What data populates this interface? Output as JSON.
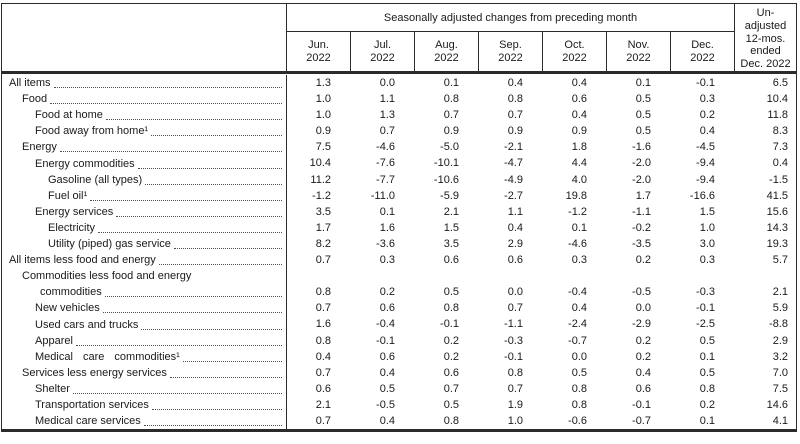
{
  "chart_data": {
    "type": "table",
    "spanner": "Seasonally adjusted changes from preceding month",
    "month_columns": [
      {
        "abbr": "Jun.",
        "year": "2022"
      },
      {
        "abbr": "Jul.",
        "year": "2022"
      },
      {
        "abbr": "Aug.",
        "year": "2022"
      },
      {
        "abbr": "Sep.",
        "year": "2022"
      },
      {
        "abbr": "Oct.",
        "year": "2022"
      },
      {
        "abbr": "Nov.",
        "year": "2022"
      },
      {
        "abbr": "Dec.",
        "year": "2022"
      }
    ],
    "unadjusted_header_lines": [
      "Un-",
      "adjusted",
      "12-mos.",
      "ended",
      "Dec. 2022"
    ],
    "rows": [
      {
        "label": "All items",
        "indent": 0,
        "values": [
          "1.3",
          "0.0",
          "0.1",
          "0.4",
          "0.4",
          "0.1",
          "-0.1"
        ],
        "unadjusted": "6.5"
      },
      {
        "label": "Food",
        "indent": 1,
        "values": [
          "1.0",
          "1.1",
          "0.8",
          "0.8",
          "0.6",
          "0.5",
          "0.3"
        ],
        "unadjusted": "10.4"
      },
      {
        "label": "Food at home",
        "indent": 2,
        "values": [
          "1.0",
          "1.3",
          "0.7",
          "0.7",
          "0.4",
          "0.5",
          "0.2"
        ],
        "unadjusted": "11.8"
      },
      {
        "label": "Food away from home¹",
        "indent": 2,
        "values": [
          "0.9",
          "0.7",
          "0.9",
          "0.9",
          "0.9",
          "0.5",
          "0.4"
        ],
        "unadjusted": "8.3"
      },
      {
        "label": "Energy",
        "indent": 1,
        "values": [
          "7.5",
          "-4.6",
          "-5.0",
          "-2.1",
          "1.8",
          "-1.6",
          "-4.5"
        ],
        "unadjusted": "7.3"
      },
      {
        "label": "Energy commodities",
        "indent": 2,
        "values": [
          "10.4",
          "-7.6",
          "-10.1",
          "-4.7",
          "4.4",
          "-2.0",
          "-9.4"
        ],
        "unadjusted": "0.4"
      },
      {
        "label": "Gasoline (all types)",
        "indent": 3,
        "values": [
          "11.2",
          "-7.7",
          "-10.6",
          "-4.9",
          "4.0",
          "-2.0",
          "-9.4"
        ],
        "unadjusted": "-1.5"
      },
      {
        "label": "Fuel oil¹",
        "indent": 3,
        "values": [
          "-1.2",
          "-11.0",
          "-5.9",
          "-2.7",
          "19.8",
          "1.7",
          "-16.6"
        ],
        "unadjusted": "41.5"
      },
      {
        "label": "Energy services",
        "indent": 2,
        "values": [
          "3.5",
          "0.1",
          "2.1",
          "1.1",
          "-1.2",
          "-1.1",
          "1.5"
        ],
        "unadjusted": "15.6"
      },
      {
        "label": "Electricity",
        "indent": 3,
        "values": [
          "1.7",
          "1.6",
          "1.5",
          "0.4",
          "0.1",
          "-0.2",
          "1.0"
        ],
        "unadjusted": "14.3"
      },
      {
        "label": "Utility (piped) gas service",
        "indent": 3,
        "values": [
          "8.2",
          "-3.6",
          "3.5",
          "2.9",
          "-4.6",
          "-3.5",
          "3.0"
        ],
        "unadjusted": "19.3"
      },
      {
        "label": "All items less food and energy",
        "indent": 0,
        "values": [
          "0.7",
          "0.3",
          "0.6",
          "0.6",
          "0.3",
          "0.2",
          "0.3"
        ],
        "unadjusted": "5.7"
      },
      {
        "label": "Commodities less food and energy",
        "label2": "commodities",
        "indent": 1,
        "values": [
          "0.8",
          "0.2",
          "0.5",
          "0.0",
          "-0.4",
          "-0.5",
          "-0.3"
        ],
        "unadjusted": "2.1"
      },
      {
        "label": "New vehicles",
        "indent": 2,
        "values": [
          "0.7",
          "0.6",
          "0.8",
          "0.7",
          "0.4",
          "0.0",
          "-0.1"
        ],
        "unadjusted": "5.9"
      },
      {
        "label": "Used cars and trucks",
        "indent": 2,
        "values": [
          "1.6",
          "-0.4",
          "-0.1",
          "-1.1",
          "-2.4",
          "-2.9",
          "-2.5"
        ],
        "unadjusted": "-8.8"
      },
      {
        "label": "Apparel",
        "indent": 2,
        "values": [
          "0.8",
          "-0.1",
          "0.2",
          "-0.3",
          "-0.7",
          "0.2",
          "0.5"
        ],
        "unadjusted": "2.9"
      },
      {
        "label": "Medical care commodities¹",
        "indent": 2,
        "justify": true,
        "values": [
          "0.4",
          "0.6",
          "0.2",
          "-0.1",
          "0.0",
          "0.2",
          "0.1"
        ],
        "unadjusted": "3.2"
      },
      {
        "label": "Services less energy services",
        "indent": 1,
        "values": [
          "0.7",
          "0.4",
          "0.6",
          "0.8",
          "0.5",
          "0.4",
          "0.5"
        ],
        "unadjusted": "7.0"
      },
      {
        "label": "Shelter",
        "indent": 2,
        "values": [
          "0.6",
          "0.5",
          "0.7",
          "0.7",
          "0.8",
          "0.6",
          "0.8"
        ],
        "unadjusted": "7.5"
      },
      {
        "label": "Transportation services",
        "indent": 2,
        "values": [
          "2.1",
          "-0.5",
          "0.5",
          "1.9",
          "0.8",
          "-0.1",
          "0.2"
        ],
        "unadjusted": "14.6"
      },
      {
        "label": "Medical care services",
        "indent": 2,
        "values": [
          "0.7",
          "0.4",
          "0.8",
          "1.0",
          "-0.6",
          "-0.7",
          "0.1"
        ],
        "unadjusted": "4.1"
      }
    ]
  }
}
